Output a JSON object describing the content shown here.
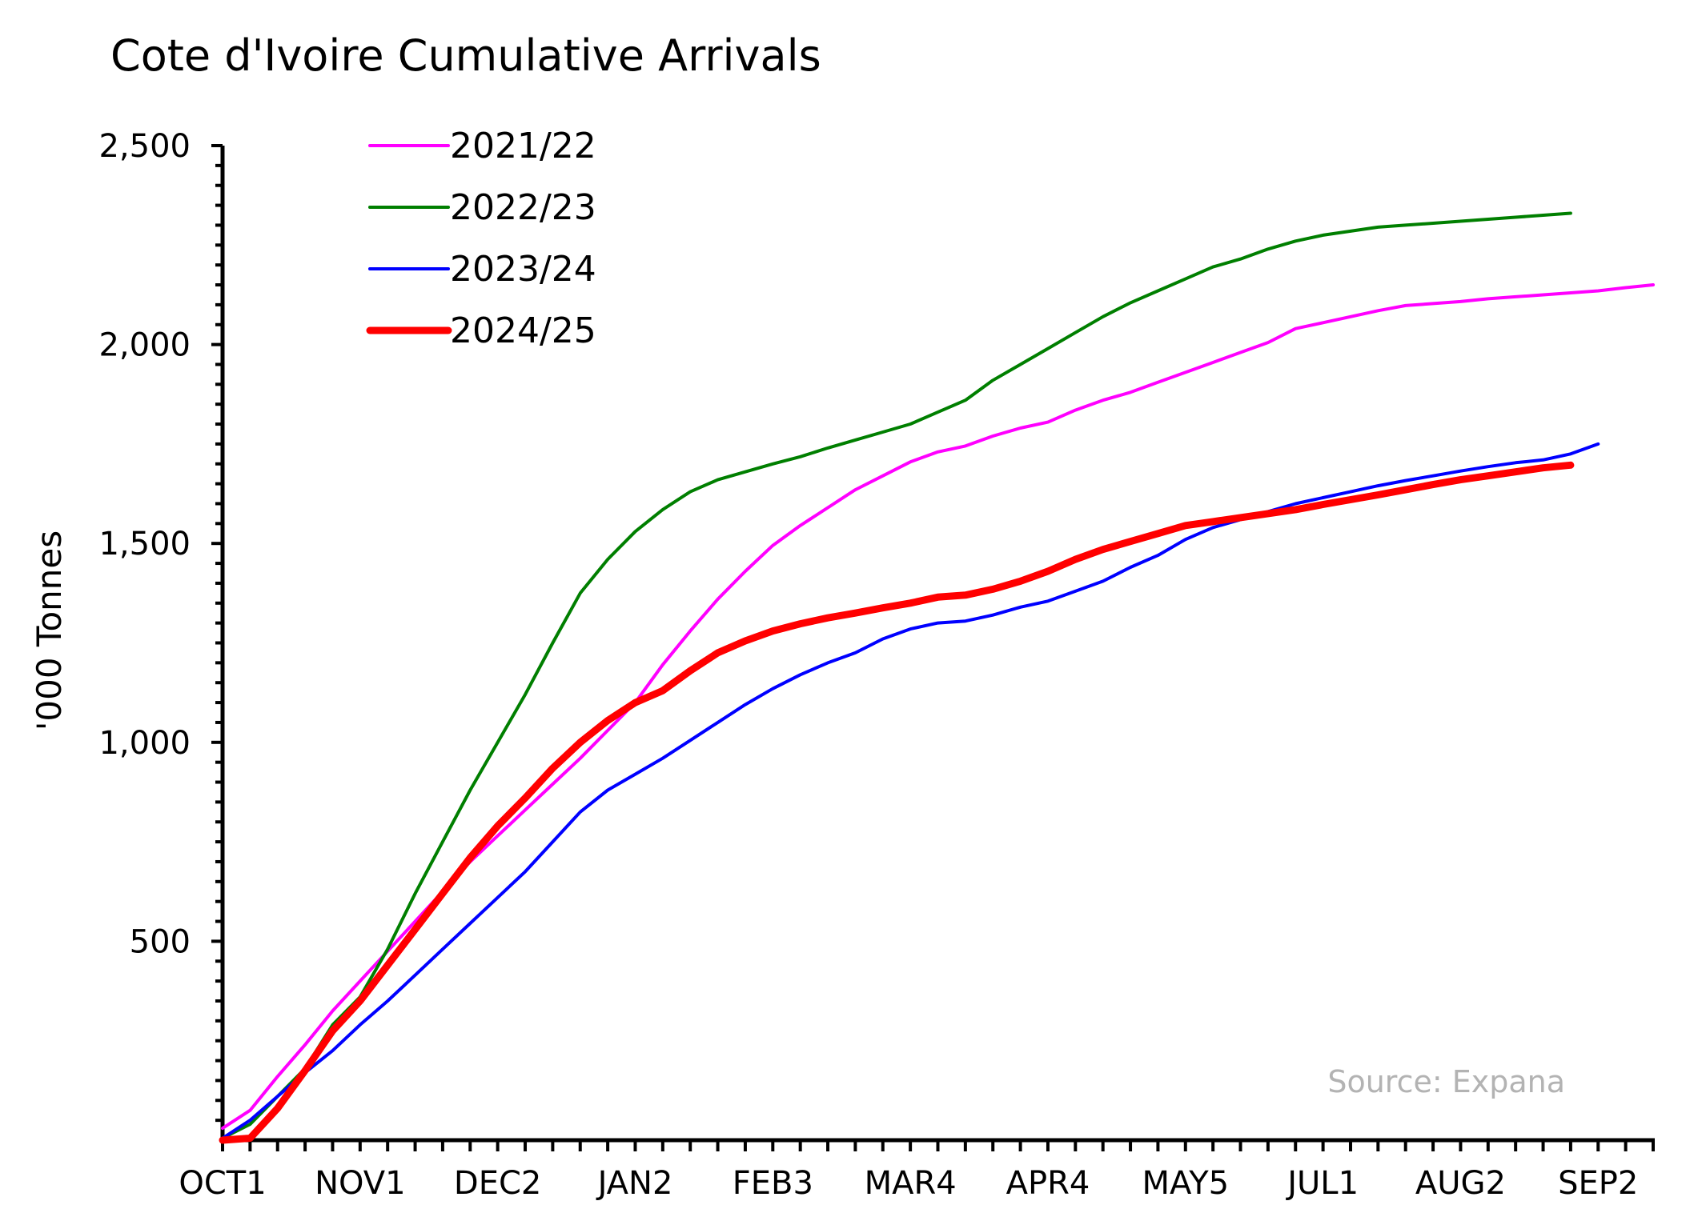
{
  "chart_data": {
    "type": "line",
    "title": "Cote d'Ivoire Cumulative Arrivals",
    "xlabel": "",
    "ylabel": "'000 Tonnes",
    "source": "Source: Expana",
    "ylim": [
      0,
      2500
    ],
    "y_ticks": [
      "500",
      "1,000",
      "1,500",
      "2,000",
      "2,500"
    ],
    "y_tick_values": [
      500,
      1000,
      1500,
      2000,
      2500
    ],
    "x_tick_labels": [
      "OCT1",
      "NOV1",
      "DEC2",
      "JAN2",
      "FEB3",
      "MAR4",
      "APR4",
      "MAY5",
      "JUL1",
      "AUG2",
      "SEP2"
    ],
    "x_tick_positions": [
      0,
      5,
      10,
      15,
      20,
      25,
      30,
      35,
      40,
      45,
      50
    ],
    "x_range": [
      0,
      52
    ],
    "grid": false,
    "legend_position": "top-left",
    "series": [
      {
        "name": "2021/22",
        "color": "#ff00ff",
        "width": 4,
        "values": [
          30,
          75,
          160,
          240,
          325,
          400,
          475,
          550,
          625,
          700,
          765,
          830,
          895,
          960,
          1030,
          1100,
          1195,
          1280,
          1360,
          1430,
          1495,
          1545,
          1590,
          1635,
          1670,
          1705,
          1730,
          1745,
          1770,
          1790,
          1805,
          1835,
          1860,
          1880,
          1905,
          1930,
          1955,
          1980,
          2005,
          2040,
          2055,
          2070,
          2085,
          2098,
          2103,
          2108,
          2115,
          2120,
          2125,
          2130,
          2135,
          2143,
          2150
        ]
      },
      {
        "name": "2022/23",
        "color": "#007f00",
        "width": 4,
        "values": [
          5,
          40,
          110,
          180,
          290,
          360,
          480,
          620,
          750,
          880,
          1000,
          1120,
          1250,
          1375,
          1460,
          1530,
          1585,
          1630,
          1660,
          1680,
          1700,
          1718,
          1740,
          1760,
          1780,
          1800,
          1830,
          1860,
          1910,
          1950,
          1990,
          2030,
          2070,
          2105,
          2135,
          2165,
          2195,
          2215,
          2240,
          2260,
          2275,
          2285,
          2295,
          2300,
          2305,
          2310,
          2315,
          2320,
          2325,
          2330
        ]
      },
      {
        "name": "2023/24",
        "color": "#0000ff",
        "width": 4,
        "values": [
          5,
          50,
          110,
          170,
          225,
          290,
          350,
          415,
          480,
          545,
          610,
          675,
          750,
          825,
          880,
          920,
          960,
          1005,
          1050,
          1095,
          1135,
          1170,
          1200,
          1225,
          1260,
          1285,
          1300,
          1305,
          1320,
          1340,
          1355,
          1380,
          1405,
          1440,
          1470,
          1510,
          1540,
          1560,
          1580,
          1600,
          1615,
          1630,
          1645,
          1658,
          1670,
          1682,
          1693,
          1703,
          1710,
          1725,
          1750
        ]
      },
      {
        "name": "2024/25",
        "color": "#ff0000",
        "width": 9,
        "values": [
          0,
          5,
          80,
          175,
          275,
          350,
          440,
          530,
          620,
          710,
          790,
          860,
          935,
          1000,
          1055,
          1100,
          1130,
          1180,
          1225,
          1255,
          1280,
          1298,
          1313,
          1325,
          1338,
          1350,
          1365,
          1370,
          1385,
          1405,
          1430,
          1460,
          1485,
          1505,
          1525,
          1545,
          1555,
          1565,
          1575,
          1585,
          1598,
          1610,
          1622,
          1635,
          1648,
          1660,
          1670,
          1680,
          1690,
          1697
        ]
      }
    ]
  }
}
